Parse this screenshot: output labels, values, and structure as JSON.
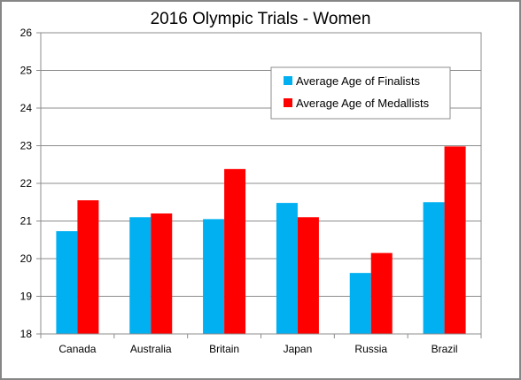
{
  "chart_data": {
    "type": "bar",
    "title": "2016 Olympic Trials - Women",
    "categories": [
      "Canada",
      "Australia",
      "Britain",
      "Japan",
      "Russia",
      "Brazil"
    ],
    "series": [
      {
        "name": "Average Age of Finalists",
        "color": "#00b0f0",
        "values": [
          20.73,
          21.1,
          21.05,
          21.48,
          19.62,
          21.5
        ]
      },
      {
        "name": "Average Age of Medallists",
        "color": "#ff0000",
        "values": [
          21.55,
          21.2,
          22.38,
          21.1,
          20.15,
          22.98
        ]
      }
    ],
    "ylim": [
      18,
      26
    ],
    "yticks": [
      18,
      19,
      20,
      21,
      22,
      23,
      24,
      25,
      26
    ],
    "grid": true,
    "legend_position": "top-right"
  }
}
